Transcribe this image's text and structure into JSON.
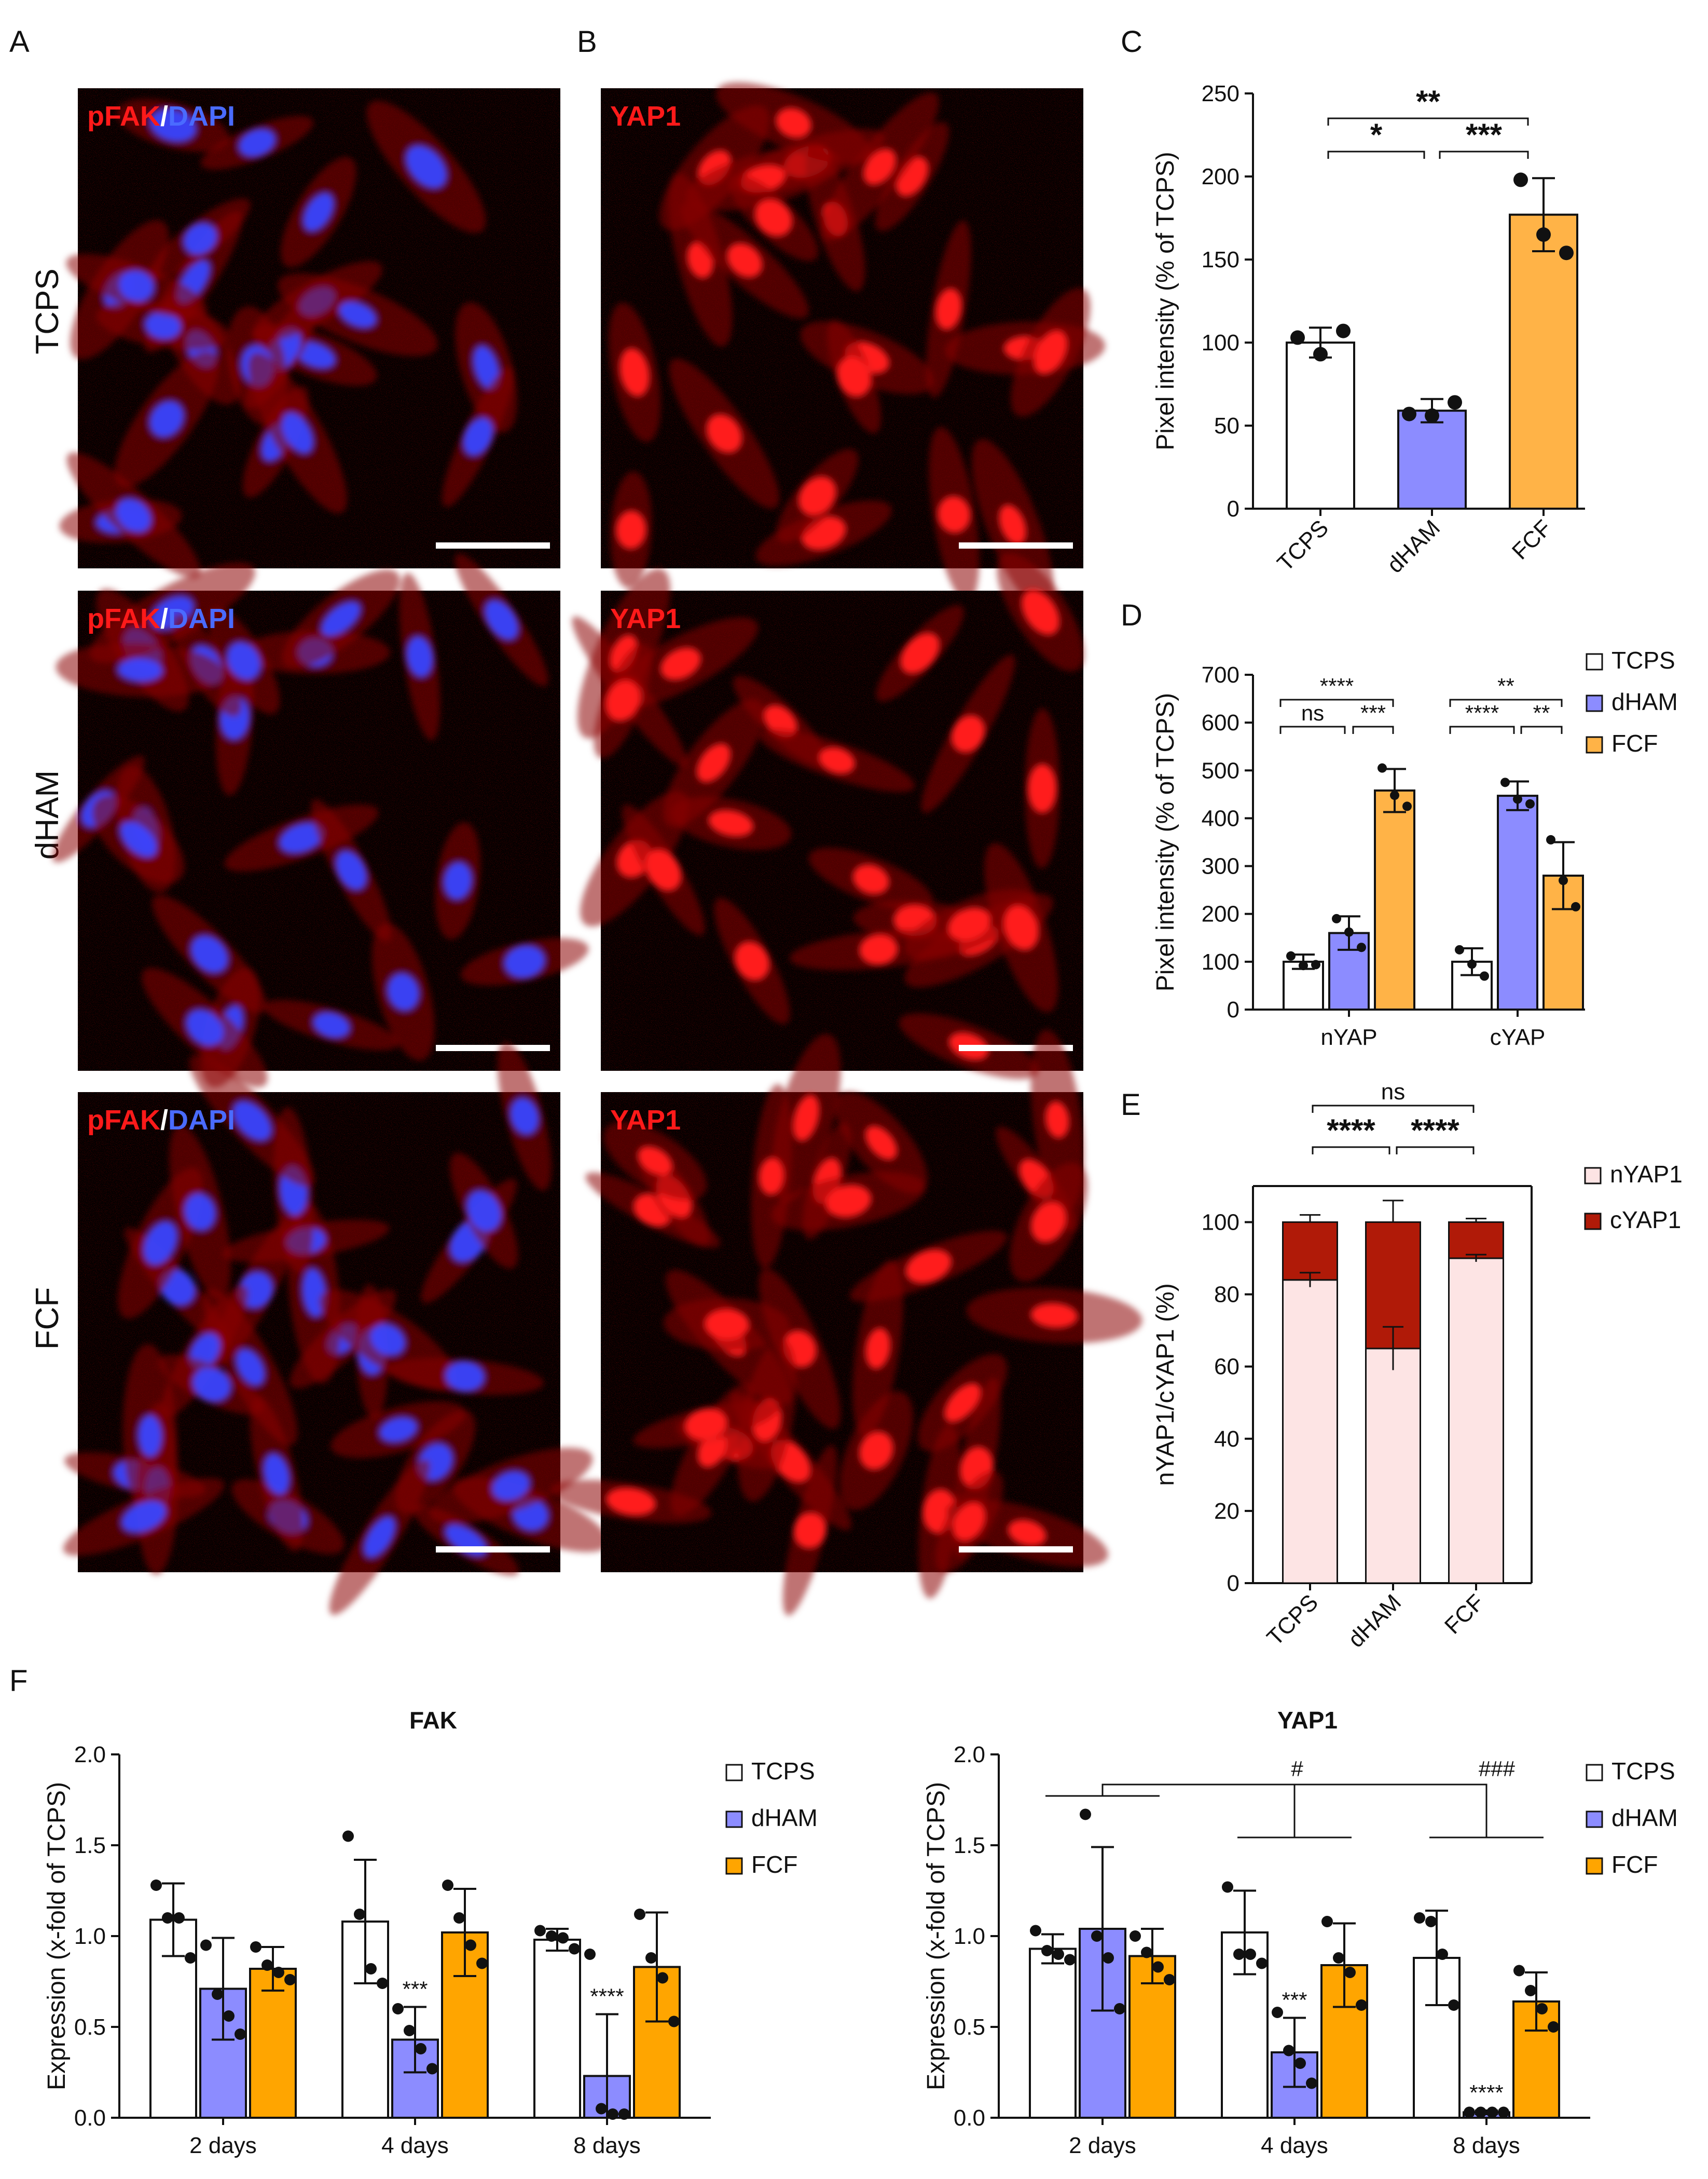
{
  "panels": {
    "A": "A",
    "B": "B",
    "C": "C",
    "D": "D",
    "E": "E",
    "F": "F"
  },
  "micrographs": {
    "pfak_part1": "pFAK",
    "pfak_sep": "/",
    "pfak_part2": "DAPI",
    "yap_label": "YAP1",
    "rows": [
      "TCPS",
      "dHAM",
      "FCF"
    ],
    "colors": {
      "red": "#ff1a1a",
      "blue": "#3a46ff",
      "background": "#050000"
    }
  },
  "colors": {
    "TCPS": "#ffffff",
    "dHAM": "#8c8cff",
    "FCF_light": "#ffb347",
    "FCF": "#ffa500",
    "nYAP1": "#fde4e4",
    "cYAP1": "#b01a08"
  },
  "chart_data": [
    {
      "id": "C",
      "type": "bar",
      "ylabel": "Pixel intensity (% of TCPS)",
      "ylim": [
        0,
        250
      ],
      "yticks": [
        "0",
        "50",
        "100",
        "150",
        "200",
        "250"
      ],
      "categories": [
        "TCPS",
        "dHAM",
        "FCF"
      ],
      "values": [
        100,
        59,
        177
      ],
      "errors": [
        9,
        7,
        22
      ],
      "points": [
        [
          103,
          93,
          107
        ],
        [
          57,
          56,
          64
        ],
        [
          198,
          165,
          154
        ]
      ],
      "significance": [
        {
          "from": "dHAM",
          "to": "FCF",
          "label": "***"
        },
        {
          "from": "TCPS",
          "to": "dHAM",
          "label": "*"
        },
        {
          "from": "TCPS",
          "to": "FCF",
          "label": "**"
        }
      ]
    },
    {
      "id": "D",
      "type": "bar",
      "ylabel": "Pixel intensity (% of TCPS)",
      "ylim": [
        0,
        700
      ],
      "yticks": [
        "0",
        "100",
        "200",
        "300",
        "400",
        "500",
        "600",
        "700"
      ],
      "groups": [
        "nYAP",
        "cYAP"
      ],
      "legend": [
        "TCPS",
        "dHAM",
        "FCF"
      ],
      "series": [
        {
          "name": "TCPS",
          "values": [
            100,
            100
          ],
          "errors": [
            15,
            28
          ],
          "points": [
            [
              112,
              92,
              94
            ],
            [
              125,
              95,
              70
            ]
          ]
        },
        {
          "name": "dHAM",
          "values": [
            160,
            447
          ],
          "errors": [
            35,
            30
          ],
          "points": [
            [
              190,
              162,
              130
            ],
            [
              475,
              440,
              430
            ]
          ]
        },
        {
          "name": "FCF",
          "values": [
            458,
            280
          ],
          "errors": [
            45,
            70
          ],
          "points": [
            [
              505,
              448,
              425
            ],
            [
              355,
              270,
              215
            ]
          ]
        }
      ],
      "significance": [
        {
          "group": "nYAP",
          "label": "****"
        },
        {
          "group": "nYAP",
          "label": "ns"
        },
        {
          "group": "nYAP",
          "label": "***"
        },
        {
          "group": "cYAP",
          "label": "**"
        },
        {
          "group": "cYAP",
          "label": "****"
        },
        {
          "group": "cYAP",
          "label": "**"
        }
      ]
    },
    {
      "id": "E",
      "type": "bar",
      "stacked": true,
      "ylabel": "nYAP1/cYAP1 (%)",
      "ylim": [
        0,
        100
      ],
      "yticks": [
        "0",
        "20",
        "40",
        "60",
        "80",
        "100"
      ],
      "categories": [
        "TCPS",
        "dHAM",
        "FCF"
      ],
      "legend": [
        "nYAP1",
        "cYAP1"
      ],
      "series": [
        {
          "name": "nYAP1",
          "values": [
            84,
            65,
            90
          ],
          "errors": [
            2,
            6,
            1
          ]
        },
        {
          "name": "cYAP1",
          "values": [
            16,
            35,
            10
          ],
          "errors": [
            2,
            6,
            1
          ]
        }
      ],
      "significance": [
        {
          "label": "****"
        },
        {
          "label": "****"
        },
        {
          "label": "ns"
        }
      ]
    },
    {
      "id": "F-FAK",
      "type": "bar",
      "title": "FAK",
      "ylabel": "Expression (x-fold of TCPS)",
      "ylim": [
        0,
        2.0
      ],
      "yticks": [
        "0.0",
        "0.5",
        "1.0",
        "1.5",
        "2.0"
      ],
      "categories": [
        "2 days",
        "4 days",
        "8 days"
      ],
      "legend": [
        "TCPS",
        "dHAM",
        "FCF"
      ],
      "series": [
        {
          "name": "TCPS",
          "values": [
            1.09,
            1.08,
            0.98
          ],
          "errors": [
            0.2,
            0.34,
            0.06
          ],
          "points": [
            [
              1.28,
              1.1,
              1.1,
              0.88
            ],
            [
              1.55,
              1.12,
              0.82,
              0.74
            ],
            [
              1.03,
              1.0,
              0.99,
              0.93
            ]
          ]
        },
        {
          "name": "dHAM",
          "values": [
            0.71,
            0.43,
            0.23
          ],
          "errors": [
            0.28,
            0.18,
            0.34
          ],
          "points": [
            [
              0.95,
              0.68,
              0.56,
              0.46
            ],
            [
              0.6,
              0.48,
              0.38,
              0.27
            ],
            [
              0.9,
              0.05,
              0.02,
              0.02
            ]
          ]
        },
        {
          "name": "FCF",
          "values": [
            0.82,
            1.02,
            0.83
          ],
          "errors": [
            0.12,
            0.24,
            0.3
          ],
          "points": [
            [
              0.94,
              0.84,
              0.8,
              0.76
            ],
            [
              1.28,
              1.1,
              0.95,
              0.85
            ],
            [
              1.12,
              0.88,
              0.77,
              0.53
            ]
          ]
        }
      ],
      "annotations": [
        {
          "category": "4 days",
          "label": "***"
        },
        {
          "category": "8 days",
          "label": "****"
        }
      ]
    },
    {
      "id": "F-YAP1",
      "type": "bar",
      "title": "YAP1",
      "ylabel": "Expression (x-fold of TCPS)",
      "ylim": [
        0,
        2.0
      ],
      "yticks": [
        "0.0",
        "0.5",
        "1.0",
        "1.5",
        "2.0"
      ],
      "categories": [
        "2 days",
        "4 days",
        "8 days"
      ],
      "legend": [
        "TCPS",
        "dHAM",
        "FCF"
      ],
      "series": [
        {
          "name": "TCPS",
          "values": [
            0.93,
            1.02,
            0.88
          ],
          "errors": [
            0.08,
            0.23,
            0.26
          ],
          "points": [
            [
              1.03,
              0.92,
              0.9,
              0.87
            ],
            [
              1.27,
              0.9,
              0.9,
              0.85
            ],
            [
              1.1,
              1.08,
              0.9,
              0.62
            ]
          ]
        },
        {
          "name": "dHAM",
          "values": [
            1.04,
            0.36,
            0.03
          ],
          "errors": [
            0.45,
            0.19,
            0.01
          ],
          "points": [
            [
              1.67,
              1.0,
              0.88,
              0.6
            ],
            [
              0.58,
              0.37,
              0.3,
              0.19
            ],
            [
              0.03,
              0.03,
              0.03,
              0.03
            ]
          ]
        },
        {
          "name": "FCF",
          "values": [
            0.89,
            0.84,
            0.64
          ],
          "errors": [
            0.15,
            0.23,
            0.16
          ],
          "points": [
            [
              1.0,
              0.91,
              0.83,
              0.76
            ],
            [
              1.08,
              0.88,
              0.8,
              0.62
            ],
            [
              0.81,
              0.7,
              0.6,
              0.5
            ]
          ]
        }
      ],
      "annotations": [
        {
          "category": "4 days",
          "label": "***"
        },
        {
          "category": "8 days",
          "label": "****"
        },
        {
          "category": "4 days",
          "label": "#"
        },
        {
          "category": "8 days",
          "label": "###"
        }
      ]
    }
  ]
}
